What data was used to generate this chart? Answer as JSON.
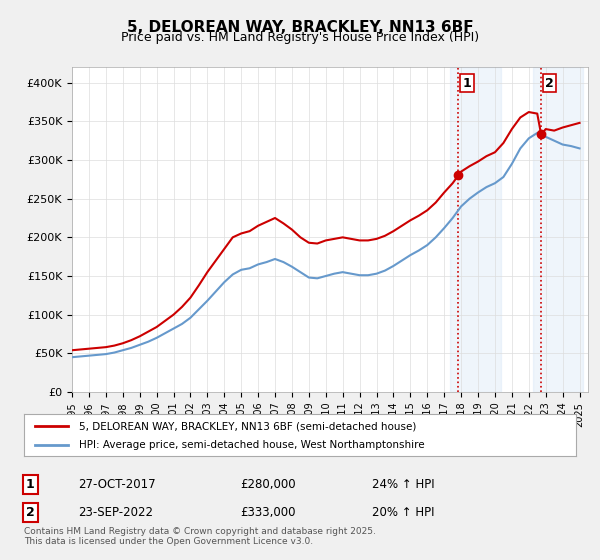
{
  "title": "5, DELOREAN WAY, BRACKLEY, NN13 6BF",
  "subtitle": "Price paid vs. HM Land Registry's House Price Index (HPI)",
  "footer": "Contains HM Land Registry data © Crown copyright and database right 2025.\nThis data is licensed under the Open Government Licence v3.0.",
  "legend_line1": "5, DELOREAN WAY, BRACKLEY, NN13 6BF (semi-detached house)",
  "legend_line2": "HPI: Average price, semi-detached house, West Northamptonshire",
  "annotation1_label": "1",
  "annotation1_date": "27-OCT-2017",
  "annotation1_price": "£280,000",
  "annotation1_hpi": "24% ↑ HPI",
  "annotation2_label": "2",
  "annotation2_date": "23-SEP-2022",
  "annotation2_price": "£333,000",
  "annotation2_hpi": "20% ↑ HPI",
  "red_color": "#cc0000",
  "blue_color": "#6699cc",
  "background_color": "#f0f0f0",
  "plot_bg_color": "#ffffff",
  "vline1_color": "#cc0000",
  "vline2_color": "#cc0000",
  "vline_bg_color": "#ddeeff",
  "ylim": [
    0,
    420000
  ],
  "yticks": [
    0,
    50000,
    100000,
    150000,
    200000,
    250000,
    300000,
    350000,
    400000
  ],
  "ytick_labels": [
    "£0",
    "£50K",
    "£100K",
    "£150K",
    "£200K",
    "£250K",
    "£300K",
    "£350K",
    "£400K"
  ],
  "red_x": [
    1995.0,
    1995.5,
    1996.0,
    1996.5,
    1997.0,
    1997.5,
    1998.0,
    1998.5,
    1999.0,
    1999.5,
    2000.0,
    2000.5,
    2001.0,
    2001.5,
    2002.0,
    2002.5,
    2003.0,
    2003.5,
    2004.0,
    2004.5,
    2005.0,
    2005.5,
    2006.0,
    2006.5,
    2007.0,
    2007.5,
    2008.0,
    2008.5,
    2009.0,
    2009.5,
    2010.0,
    2010.5,
    2011.0,
    2011.5,
    2012.0,
    2012.5,
    2013.0,
    2013.5,
    2014.0,
    2014.5,
    2015.0,
    2015.5,
    2016.0,
    2016.5,
    2017.0,
    2017.5,
    2017.83,
    2018.0,
    2018.5,
    2019.0,
    2019.5,
    2020.0,
    2020.5,
    2021.0,
    2021.5,
    2022.0,
    2022.5,
    2022.73,
    2023.0,
    2023.5,
    2024.0,
    2024.5,
    2025.0
  ],
  "red_y": [
    54000,
    55000,
    56000,
    57000,
    58000,
    60000,
    63000,
    67000,
    72000,
    78000,
    84000,
    92000,
    100000,
    110000,
    122000,
    138000,
    155000,
    170000,
    185000,
    200000,
    205000,
    208000,
    215000,
    220000,
    225000,
    218000,
    210000,
    200000,
    193000,
    192000,
    196000,
    198000,
    200000,
    198000,
    196000,
    196000,
    198000,
    202000,
    208000,
    215000,
    222000,
    228000,
    235000,
    245000,
    258000,
    270000,
    280000,
    285000,
    292000,
    298000,
    305000,
    310000,
    322000,
    340000,
    355000,
    362000,
    360000,
    333000,
    340000,
    338000,
    342000,
    345000,
    348000
  ],
  "blue_x": [
    1995.0,
    1995.5,
    1996.0,
    1996.5,
    1997.0,
    1997.5,
    1998.0,
    1998.5,
    1999.0,
    1999.5,
    2000.0,
    2000.5,
    2001.0,
    2001.5,
    2002.0,
    2002.5,
    2003.0,
    2003.5,
    2004.0,
    2004.5,
    2005.0,
    2005.5,
    2006.0,
    2006.5,
    2007.0,
    2007.5,
    2008.0,
    2008.5,
    2009.0,
    2009.5,
    2010.0,
    2010.5,
    2011.0,
    2011.5,
    2012.0,
    2012.5,
    2013.0,
    2013.5,
    2014.0,
    2014.5,
    2015.0,
    2015.5,
    2016.0,
    2016.5,
    2017.0,
    2017.5,
    2018.0,
    2018.5,
    2019.0,
    2019.5,
    2020.0,
    2020.5,
    2021.0,
    2021.5,
    2022.0,
    2022.5,
    2023.0,
    2023.5,
    2024.0,
    2024.5,
    2025.0
  ],
  "blue_y": [
    45000,
    46000,
    47000,
    48000,
    49000,
    51000,
    54000,
    57000,
    61000,
    65000,
    70000,
    76000,
    82000,
    88000,
    96000,
    107000,
    118000,
    130000,
    142000,
    152000,
    158000,
    160000,
    165000,
    168000,
    172000,
    168000,
    162000,
    155000,
    148000,
    147000,
    150000,
    153000,
    155000,
    153000,
    151000,
    151000,
    153000,
    157000,
    163000,
    170000,
    177000,
    183000,
    190000,
    200000,
    212000,
    225000,
    240000,
    250000,
    258000,
    265000,
    270000,
    278000,
    295000,
    315000,
    328000,
    335000,
    330000,
    325000,
    320000,
    318000,
    315000
  ],
  "vline1_x": 2017.83,
  "vline2_x": 2022.73,
  "dot1_x": 2017.83,
  "dot1_y": 280000,
  "dot2_x": 2022.73,
  "dot2_y": 333000,
  "xmin": 1995,
  "xmax": 2025.5
}
